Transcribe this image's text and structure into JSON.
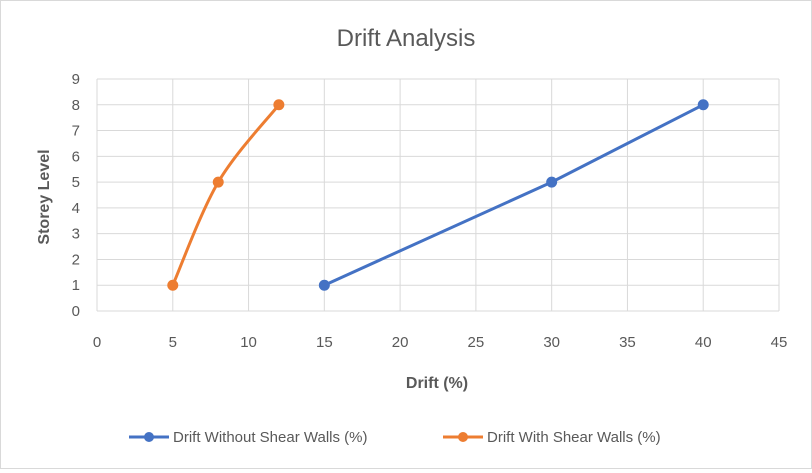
{
  "chart_data": {
    "type": "scatter",
    "title": "Drift Analysis",
    "xlabel": "Drift (%)",
    "ylabel": "Storey Level",
    "xlim": [
      0,
      45
    ],
    "ylim": [
      0,
      9
    ],
    "x_ticks": [
      0,
      5,
      10,
      15,
      20,
      25,
      30,
      35,
      40,
      45
    ],
    "y_ticks": [
      0,
      1,
      2,
      3,
      4,
      5,
      6,
      7,
      8,
      9
    ],
    "grid": true,
    "legend_position": "bottom",
    "series": [
      {
        "name": "Drift Without Shear Walls (%)",
        "color": "#4472C4",
        "smooth": false,
        "points": [
          {
            "x": 15,
            "y": 1
          },
          {
            "x": 30,
            "y": 5
          },
          {
            "x": 40,
            "y": 8
          }
        ]
      },
      {
        "name": "Drift With Shear Walls (%)",
        "color": "#ED7D31",
        "smooth": true,
        "points": [
          {
            "x": 5,
            "y": 1
          },
          {
            "x": 8,
            "y": 5
          },
          {
            "x": 12,
            "y": 8
          }
        ]
      }
    ]
  }
}
